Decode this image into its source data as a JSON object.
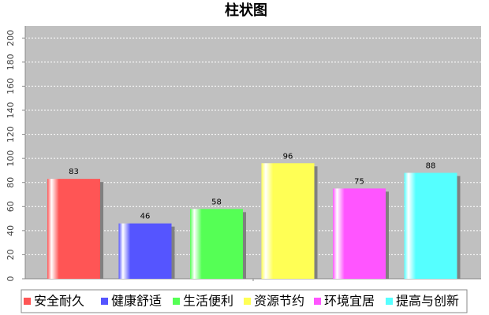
{
  "chart_data": {
    "type": "bar",
    "title": "柱状图",
    "series": [
      {
        "name": "安全耐久",
        "color": "#ff5555",
        "values": [
          83
        ]
      },
      {
        "name": "健康舒适",
        "color": "#5555ff",
        "values": [
          46
        ]
      },
      {
        "name": "生活便利",
        "color": "#55ff55",
        "values": [
          58
        ]
      },
      {
        "name": "资源节约",
        "color": "#ffff55",
        "values": [
          96
        ]
      },
      {
        "name": "环境宜居",
        "color": "#ff55ff",
        "values": [
          75
        ]
      },
      {
        "name": "提高与创新",
        "color": "#55ffff",
        "values": [
          88
        ]
      }
    ],
    "ylim": [
      0,
      210
    ],
    "yticks": [
      0,
      20,
      40,
      60,
      80,
      100,
      120,
      140,
      160,
      180,
      200
    ],
    "grid": true
  }
}
